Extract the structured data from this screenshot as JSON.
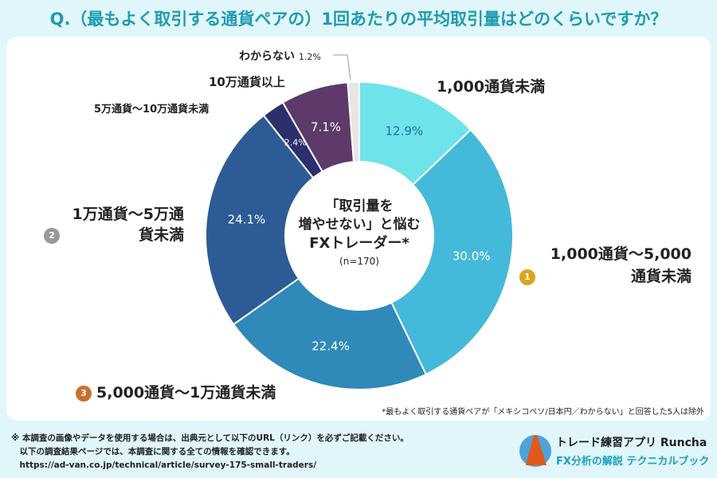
{
  "title": "Q.（最もよく取引する通貨ペアの）1回あたりの平均取引量はどのくらいですか？",
  "chart_data": {
    "type": "pie",
    "donut": true,
    "title": "Q.（最もよく取引する通貨ペアの）1回あたりの平均取引量はどのくらいですか？",
    "center_label": [
      "「取引量を",
      "増やせない」と悩む",
      "FXトレーダー*",
      "(n=170)"
    ],
    "categories": [
      "1,000通貨未満",
      "1,000通貨～5,000通貨未満",
      "5,000通貨～1万通貨未満",
      "1万通貨～5万通貨未満",
      "5万通貨～10万通貨未満",
      "10万通貨以上",
      "わからない"
    ],
    "values": [
      12.9,
      30.0,
      22.4,
      24.1,
      2.4,
      7.1,
      1.2
    ],
    "value_labels": [
      "12.9%",
      "30.0%",
      "22.4%",
      "24.1%",
      "2.4%",
      "7.1%",
      "1.2%"
    ],
    "colors": [
      "#6ee3e9",
      "#45b9d9",
      "#2f89b9",
      "#2d5b95",
      "#2c2f6c",
      "#5e3a6b",
      "#e6e6e6"
    ],
    "ranks": {
      "first": "1",
      "second": "2",
      "third": "3"
    },
    "note": "*最もよく取引する通貨ペアが「メキシコペソ/日本円／わからない」と回答した5人は除外"
  },
  "footer": {
    "lines": [
      "※ 本調査の画像やデータを使用する場合は、出典元として以下のURL（リンク）を必ずご記載ください。",
      "　以下の調査結果ページでは、本調査に関する全ての情報を確認できます。",
      "　https://ad-van.co.jp/technical/article/survey-175-small-traders/"
    ],
    "logo_title": "トレード練習アプリ Runcha",
    "logo_sub": "FX分析の解説 テクニカルブック"
  }
}
